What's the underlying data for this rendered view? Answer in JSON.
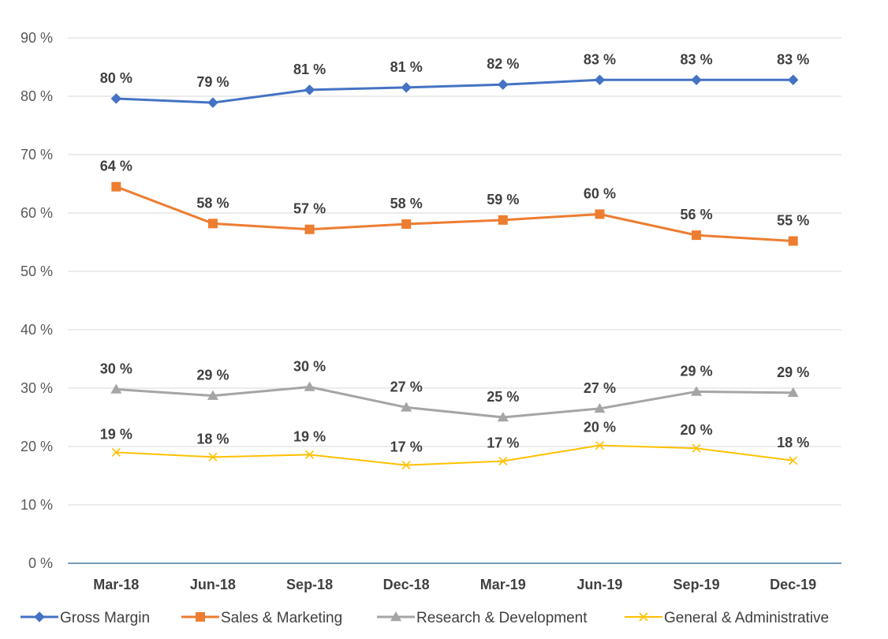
{
  "chart_data": {
    "type": "line",
    "categories": [
      "Mar-18",
      "Jun-18",
      "Sep-18",
      "Dec-18",
      "Mar-19",
      "Jun-19",
      "Sep-19",
      "Dec-19"
    ],
    "ylim": [
      0,
      90
    ],
    "yticks": [
      0,
      10,
      20,
      30,
      40,
      50,
      60,
      70,
      80,
      90
    ],
    "ytick_labels": [
      "0 %",
      "10 %",
      "20 %",
      "30 %",
      "40 %",
      "50 %",
      "60 %",
      "70 %",
      "80 %",
      "90 %"
    ],
    "grid": true,
    "legend_position": "bottom",
    "title": "",
    "xlabel": "",
    "ylabel": "",
    "series": [
      {
        "name": "Gross Margin",
        "color": "#4472c4",
        "marker": "diamond",
        "values": [
          79.6,
          78.9,
          81.1,
          81.5,
          82.0,
          82.8,
          82.8,
          82.8
        ],
        "labels": [
          "80 %",
          "79 %",
          "81 %",
          "81 %",
          "82 %",
          "83 %",
          "83 %",
          "83 %"
        ]
      },
      {
        "name": "Sales & Marketing",
        "color": "#ed7d31",
        "marker": "square",
        "values": [
          64.5,
          58.2,
          57.2,
          58.1,
          58.8,
          59.8,
          56.2,
          55.2
        ],
        "labels": [
          "64 %",
          "58 %",
          "57 %",
          "58 %",
          "59 %",
          "60 %",
          "56 %",
          "55 %"
        ]
      },
      {
        "name": "Research & Development",
        "color": "#a5a5a5",
        "marker": "triangle",
        "values": [
          29.8,
          28.7,
          30.2,
          26.7,
          25.0,
          26.5,
          29.4,
          29.2
        ],
        "labels": [
          "30 %",
          "29 %",
          "30 %",
          "27 %",
          "25 %",
          "27 %",
          "29 %",
          "29 %"
        ]
      },
      {
        "name": "General & Administrative",
        "color": "#ffc000",
        "marker": "x",
        "values": [
          19.0,
          18.2,
          18.6,
          16.8,
          17.5,
          20.2,
          19.7,
          17.6
        ],
        "labels": [
          "19 %",
          "18 %",
          "19 %",
          "17 %",
          "17 %",
          "20 %",
          "20 %",
          "18 %"
        ]
      }
    ]
  }
}
